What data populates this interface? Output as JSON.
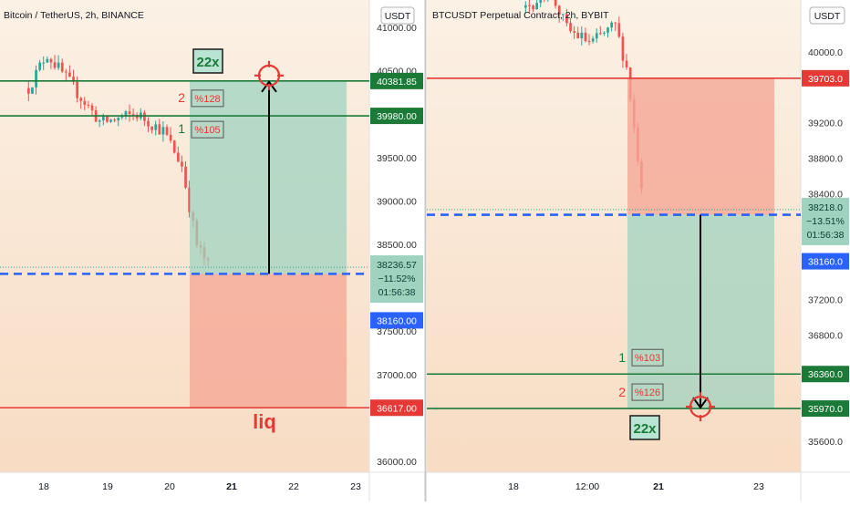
{
  "colors": {
    "bg_top": "#fbf0e3",
    "bg_bottom": "#f7dcc2",
    "up": "#26a69a",
    "down": "#ef5350",
    "green_line": "#1b7a37",
    "red_line": "#e53935",
    "entry_line": "#2962ff",
    "profit_zone": "#9fd3c0",
    "loss_zone": "#f5a896",
    "axis_text": "#333333",
    "divider": "#d0d0d0"
  },
  "left": {
    "symbol_title": "Bitcoin / TetherUS, 2h, BINANCE",
    "currency": "USDT",
    "price_ticks": [
      {
        "value": 41000,
        "label": "41000.00"
      },
      {
        "value": 40500,
        "label": "40500.00"
      },
      {
        "value": 39500,
        "label": "39500.00"
      },
      {
        "value": 39000,
        "label": "39000.00"
      },
      {
        "value": 38500,
        "label": "38500.00"
      },
      {
        "value": 37500,
        "label": "37500.00"
      },
      {
        "value": 37000,
        "label": "37000.00"
      },
      {
        "value": 36000,
        "label": "36000.00"
      }
    ],
    "time_ticks": [
      {
        "label": "18",
        "bold": false
      },
      {
        "label": "19",
        "bold": false
      },
      {
        "label": "20",
        "bold": false
      },
      {
        "label": "21",
        "bold": true
      },
      {
        "label": "22",
        "bold": false
      },
      {
        "label": "23",
        "bold": false
      }
    ],
    "lines": [
      {
        "name": "tp2",
        "price": 40381.85,
        "label": "40381.85",
        "color": "#1b7a37"
      },
      {
        "name": "tp1",
        "price": 39980.0,
        "label": "39980.00",
        "color": "#1b7a37"
      },
      {
        "name": "liq",
        "price": 36617.0,
        "label": "36617.00",
        "color": "#e53935"
      }
    ],
    "entry": {
      "price": 38160.0,
      "label": "38160.00"
    },
    "last": {
      "price": 38236.57,
      "price_label": "38236.57",
      "change": "−11.52%",
      "countdown": "01:56:38"
    },
    "leverage": "22x",
    "targets": [
      {
        "num": "2",
        "pct": "%128"
      },
      {
        "num": "1",
        "pct": "%105"
      }
    ],
    "liq_label": "liq"
  },
  "right": {
    "symbol_title": "BTCUSDT Perpetual Contract, 2h, BYBIT",
    "currency": "USDT",
    "price_ticks": [
      {
        "value": 40000,
        "label": "40000.0"
      },
      {
        "value": 39200,
        "label": "39200.0"
      },
      {
        "value": 38800,
        "label": "38800.0"
      },
      {
        "value": 38400,
        "label": "38400.0"
      },
      {
        "value": 37200,
        "label": "37200.0"
      },
      {
        "value": 36800,
        "label": "36800.0"
      },
      {
        "value": 35600,
        "label": "35600.0"
      }
    ],
    "time_ticks": [
      {
        "label": "18",
        "bold": false
      },
      {
        "label": "12:00",
        "bold": false
      },
      {
        "label": "21",
        "bold": true
      },
      {
        "label": "23",
        "bold": false
      }
    ],
    "lines": [
      {
        "name": "stop",
        "price": 39703.0,
        "label": "39703.0",
        "color": "#e53935"
      },
      {
        "name": "tp1",
        "price": 36360.0,
        "label": "36360.0",
        "color": "#1b7a37"
      },
      {
        "name": "tp2",
        "price": 35970.0,
        "label": "35970.0",
        "color": "#1b7a37"
      }
    ],
    "entry": {
      "price": 38160.0,
      "label": "38160.0"
    },
    "last": {
      "price": 38218.0,
      "price_label": "38218.0",
      "change": "−13.51%",
      "countdown": "01:56:38"
    },
    "leverage": "22x",
    "targets": [
      {
        "num": "1",
        "pct": "%103"
      },
      {
        "num": "2",
        "pct": "%126"
      }
    ]
  }
}
